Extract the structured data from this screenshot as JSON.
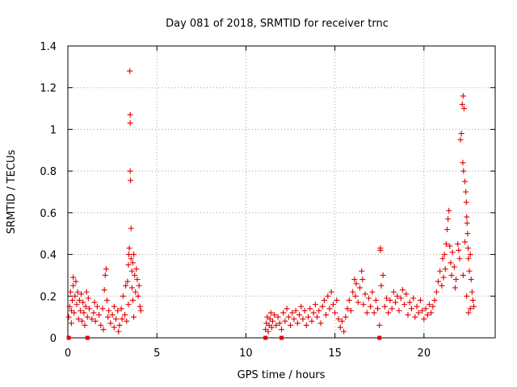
{
  "chart_data": {
    "type": "scatter",
    "title": "Day 081 of 2018, SRMTID for receiver trnc",
    "xlabel": "GPS time / hours",
    "ylabel": "SRMTID / TECUs",
    "xlim": [
      0,
      24
    ],
    "ylim": [
      0,
      1.4
    ],
    "x_ticks": [
      0,
      5,
      10,
      15,
      20
    ],
    "x_tick_labels": [
      "0",
      "5",
      "10",
      "15",
      "20"
    ],
    "y_ticks": [
      0,
      0.2,
      0.4,
      0.6,
      0.8,
      1.0,
      1.2,
      1.4
    ],
    "y_tick_labels": [
      "0",
      "0.2",
      "0.4",
      "0.6",
      "0.8",
      "1",
      "1.2",
      "1.4"
    ],
    "grid": true,
    "marker": "plus",
    "color": "#e00000",
    "zero_markers_x": [
      0.05,
      1.1,
      11.1,
      12.0,
      17.5
    ],
    "series": [
      {
        "name": "SRMTID",
        "points": [
          [
            0.05,
            0.1
          ],
          [
            0.1,
            0.15
          ],
          [
            0.15,
            0.22
          ],
          [
            0.2,
            0.13
          ],
          [
            0.25,
            0.18
          ],
          [
            0.3,
            0.25
          ],
          [
            0.35,
            0.12
          ],
          [
            0.4,
            0.2
          ],
          [
            0.45,
            0.27
          ],
          [
            0.5,
            0.16
          ],
          [
            0.55,
            0.22
          ],
          [
            0.6,
            0.09
          ],
          [
            0.65,
            0.18
          ],
          [
            0.7,
            0.13
          ],
          [
            0.75,
            0.21
          ],
          [
            0.8,
            0.08
          ],
          [
            0.85,
            0.17
          ],
          [
            0.9,
            0.12
          ],
          [
            0.95,
            0.06
          ],
          [
            1.0,
            0.15
          ],
          [
            1.05,
            0.22
          ],
          [
            1.1,
            0.1
          ],
          [
            1.15,
            0.19
          ],
          [
            1.2,
            0.14
          ],
          [
            0.3,
            0.29
          ],
          [
            0.2,
            0.07
          ],
          [
            1.35,
            0.09
          ],
          [
            1.45,
            0.12
          ],
          [
            1.55,
            0.08
          ],
          [
            1.65,
            0.15
          ],
          [
            1.75,
            0.11
          ],
          [
            1.85,
            0.06
          ],
          [
            1.95,
            0.14
          ],
          [
            2.05,
            0.23
          ],
          [
            2.1,
            0.3
          ],
          [
            2.15,
            0.33
          ],
          [
            2.2,
            0.18
          ],
          [
            2.25,
            0.1
          ],
          [
            2.3,
            0.13
          ],
          [
            2.4,
            0.07
          ],
          [
            2.5,
            0.11
          ],
          [
            2.6,
            0.05
          ],
          [
            2.7,
            0.09
          ],
          [
            2.8,
            0.13
          ],
          [
            2.9,
            0.06
          ],
          [
            3.0,
            0.14
          ],
          [
            3.1,
            0.2
          ],
          [
            3.2,
            0.11
          ],
          [
            3.25,
            0.25
          ],
          [
            3.3,
            0.08
          ],
          [
            1.5,
            0.17
          ],
          [
            2.0,
            0.04
          ],
          [
            2.6,
            0.15
          ],
          [
            2.85,
            0.03
          ],
          [
            3.05,
            0.09
          ],
          [
            3.35,
            0.27
          ],
          [
            3.4,
            0.35
          ],
          [
            3.42,
            0.4
          ],
          [
            3.45,
            0.43
          ],
          [
            3.48,
            1.28
          ],
          [
            3.5,
            1.07
          ],
          [
            3.5,
            1.03
          ],
          [
            3.5,
            0.8
          ],
          [
            3.52,
            0.755
          ],
          [
            3.55,
            0.525
          ],
          [
            3.55,
            0.38
          ],
          [
            3.6,
            0.32
          ],
          [
            3.65,
            0.36
          ],
          [
            3.6,
            0.24
          ],
          [
            3.65,
            0.18
          ],
          [
            3.7,
            0.4
          ],
          [
            3.75,
            0.3
          ],
          [
            3.8,
            0.22
          ],
          [
            3.85,
            0.33
          ],
          [
            3.9,
            0.28
          ],
          [
            3.95,
            0.2
          ],
          [
            4.0,
            0.25
          ],
          [
            4.05,
            0.15
          ],
          [
            4.1,
            0.13
          ],
          [
            3.7,
            0.1
          ],
          [
            3.4,
            0.16
          ],
          [
            11.1,
            0.04
          ],
          [
            11.15,
            0.07
          ],
          [
            11.2,
            0.1
          ],
          [
            11.25,
            0.03
          ],
          [
            11.3,
            0.06
          ],
          [
            11.35,
            0.09
          ],
          [
            11.4,
            0.12
          ],
          [
            11.45,
            0.05
          ],
          [
            11.5,
            0.08
          ],
          [
            11.6,
            0.11
          ],
          [
            11.7,
            0.06
          ],
          [
            11.8,
            0.1
          ],
          [
            11.9,
            0.07
          ],
          [
            12.0,
            0.04
          ],
          [
            12.1,
            0.12
          ],
          [
            12.2,
            0.08
          ],
          [
            12.3,
            0.14
          ],
          [
            12.4,
            0.1
          ],
          [
            12.5,
            0.06
          ],
          [
            12.6,
            0.12
          ],
          [
            12.7,
            0.09
          ],
          [
            12.8,
            0.13
          ],
          [
            12.9,
            0.07
          ],
          [
            13.0,
            0.11
          ],
          [
            13.1,
            0.15
          ],
          [
            13.2,
            0.09
          ],
          [
            13.3,
            0.13
          ],
          [
            13.4,
            0.06
          ],
          [
            13.5,
            0.1
          ],
          [
            13.6,
            0.14
          ],
          [
            13.7,
            0.08
          ],
          [
            13.8,
            0.12
          ],
          [
            13.9,
            0.16
          ],
          [
            14.0,
            0.1
          ],
          [
            14.1,
            0.13
          ],
          [
            14.2,
            0.07
          ],
          [
            14.3,
            0.15
          ],
          [
            14.4,
            0.18
          ],
          [
            14.5,
            0.11
          ],
          [
            14.6,
            0.2
          ],
          [
            14.7,
            0.14
          ],
          [
            14.8,
            0.22
          ],
          [
            14.9,
            0.16
          ],
          [
            15.0,
            0.12
          ],
          [
            15.1,
            0.18
          ],
          [
            15.2,
            0.09
          ],
          [
            15.3,
            0.05
          ],
          [
            15.4,
            0.08
          ],
          [
            15.5,
            0.03
          ],
          [
            15.6,
            0.1
          ],
          [
            15.7,
            0.14
          ],
          [
            15.8,
            0.18
          ],
          [
            15.9,
            0.13
          ],
          [
            16.0,
            0.22
          ],
          [
            16.1,
            0.28
          ],
          [
            16.15,
            0.2
          ],
          [
            16.2,
            0.26
          ],
          [
            16.3,
            0.17
          ],
          [
            16.4,
            0.24
          ],
          [
            16.5,
            0.32
          ],
          [
            16.55,
            0.28
          ],
          [
            16.6,
            0.16
          ],
          [
            16.7,
            0.21
          ],
          [
            16.8,
            0.12
          ],
          [
            16.9,
            0.19
          ],
          [
            17.0,
            0.15
          ],
          [
            17.1,
            0.22
          ],
          [
            17.2,
            0.12
          ],
          [
            17.3,
            0.18
          ],
          [
            17.4,
            0.14
          ],
          [
            17.5,
            0.06
          ],
          [
            17.55,
            0.43
          ],
          [
            17.55,
            0.42
          ],
          [
            17.6,
            0.25
          ],
          [
            17.7,
            0.3
          ],
          [
            17.8,
            0.15
          ],
          [
            17.9,
            0.19
          ],
          [
            18.0,
            0.12
          ],
          [
            18.1,
            0.18
          ],
          [
            18.2,
            0.14
          ],
          [
            18.3,
            0.22
          ],
          [
            18.4,
            0.17
          ],
          [
            18.5,
            0.2
          ],
          [
            18.6,
            0.13
          ],
          [
            18.7,
            0.19
          ],
          [
            18.8,
            0.23
          ],
          [
            18.9,
            0.16
          ],
          [
            19.0,
            0.21
          ],
          [
            19.1,
            0.11
          ],
          [
            19.2,
            0.17
          ],
          [
            19.3,
            0.14
          ],
          [
            19.4,
            0.19
          ],
          [
            19.5,
            0.1
          ],
          [
            19.6,
            0.15
          ],
          [
            19.7,
            0.12
          ],
          [
            19.8,
            0.18
          ],
          [
            19.9,
            0.13
          ],
          [
            20.0,
            0.09
          ],
          [
            20.1,
            0.14
          ],
          [
            20.2,
            0.11
          ],
          [
            20.3,
            0.16
          ],
          [
            20.4,
            0.12
          ],
          [
            20.5,
            0.15
          ],
          [
            20.6,
            0.18
          ],
          [
            20.7,
            0.22
          ],
          [
            20.8,
            0.27
          ],
          [
            20.9,
            0.32
          ],
          [
            21.0,
            0.25
          ],
          [
            21.05,
            0.38
          ],
          [
            21.1,
            0.29
          ],
          [
            21.15,
            0.4
          ],
          [
            21.2,
            0.33
          ],
          [
            21.25,
            0.45
          ],
          [
            21.3,
            0.52
          ],
          [
            21.35,
            0.57
          ],
          [
            21.4,
            0.61
          ],
          [
            21.45,
            0.44
          ],
          [
            21.5,
            0.36
          ],
          [
            21.55,
            0.3
          ],
          [
            21.6,
            0.41
          ],
          [
            21.7,
            0.34
          ],
          [
            21.8,
            0.28
          ],
          [
            21.9,
            0.45
          ],
          [
            22.0,
            0.38
          ],
          [
            22.05,
            0.95
          ],
          [
            22.1,
            0.98
          ],
          [
            22.15,
            1.12
          ],
          [
            22.2,
            1.16
          ],
          [
            22.25,
            1.1
          ],
          [
            22.18,
            0.84
          ],
          [
            22.22,
            0.8
          ],
          [
            22.3,
            0.75
          ],
          [
            22.35,
            0.7
          ],
          [
            22.38,
            0.65
          ],
          [
            22.4,
            0.58
          ],
          [
            22.42,
            0.55
          ],
          [
            22.45,
            0.5
          ],
          [
            22.3,
            0.46
          ],
          [
            22.48,
            0.43
          ],
          [
            22.5,
            0.38
          ],
          [
            22.55,
            0.32
          ],
          [
            22.6,
            0.4
          ],
          [
            22.65,
            0.28
          ],
          [
            22.7,
            0.22
          ],
          [
            22.75,
            0.18
          ],
          [
            22.8,
            0.15
          ],
          [
            22.6,
            0.14
          ],
          [
            22.5,
            0.12
          ],
          [
            22.4,
            0.2
          ],
          [
            22.2,
            0.3
          ],
          [
            21.95,
            0.42
          ],
          [
            21.75,
            0.24
          ]
        ]
      }
    ]
  }
}
